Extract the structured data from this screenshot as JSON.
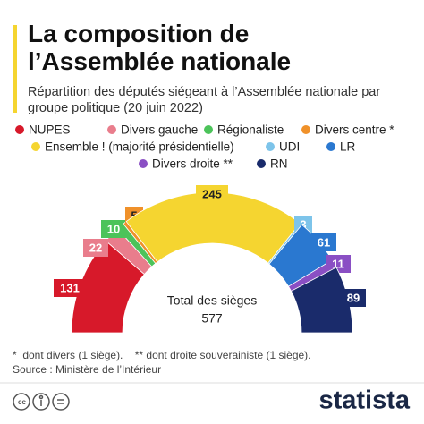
{
  "chart_data": {
    "type": "semicircle",
    "title": "La composition de l’Assemblée nationale",
    "subtitle": "Répartition des députés siégeant à l’Assemblée nationale par groupe politique (20 juin 2022)",
    "categories": [
      "NUPES",
      "Divers gauche",
      "Régionaliste",
      "Divers centre *",
      "Ensemble ! (majorité présidentielle)",
      "UDI",
      "LR",
      "Divers droite **",
      "RN"
    ],
    "values": [
      131,
      22,
      10,
      5,
      245,
      3,
      61,
      11,
      89
    ],
    "colors": [
      "#d7192a",
      "#e97d8c",
      "#4cc35a",
      "#f0912a",
      "#f5d530",
      "#7dc4ea",
      "#2a78d0",
      "#8a4fc4",
      "#1a2b6b"
    ],
    "total": {
      "label": "Total des sièges",
      "value": 577
    },
    "footnote": "*  dont divers (1 siège).    ** dont droite souverainiste (1 siège).",
    "source": "Source : Ministère de l’Intérieur",
    "brand": "statista"
  }
}
